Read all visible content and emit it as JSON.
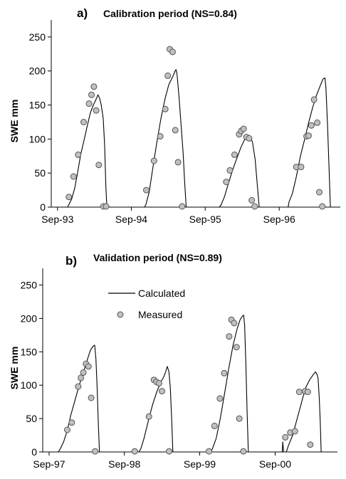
{
  "chart_data": [
    {
      "type": "line",
      "panel_label": "a)",
      "title": "Calibration period (NS=0.84)",
      "ylabel": "SWE mm",
      "xlabel": "",
      "ylim": [
        0,
        275
      ],
      "yticks": [
        0,
        50,
        100,
        150,
        200,
        250
      ],
      "xlim": [
        "1993-08-01",
        "1997-06-30"
      ],
      "xticks": [
        {
          "date": "1993-09-01",
          "label": "Sep-93"
        },
        {
          "date": "1994-09-01",
          "label": "Sep-94"
        },
        {
          "date": "1995-09-01",
          "label": "Sep-95"
        },
        {
          "date": "1996-09-01",
          "label": "Sep-96"
        }
      ],
      "grid": false,
      "series": [
        {
          "kind": "line",
          "color": "#000000",
          "points": [
            [
              "1993-08-01",
              0
            ],
            [
              "1993-10-20",
              0
            ],
            [
              "1993-10-26",
              3
            ],
            [
              "1993-11-10",
              12
            ],
            [
              "1993-11-25",
              28
            ],
            [
              "1993-12-10",
              52
            ],
            [
              "1993-12-25",
              78
            ],
            [
              "1994-01-10",
              98
            ],
            [
              "1994-01-25",
              118
            ],
            [
              "1994-02-10",
              138
            ],
            [
              "1994-02-25",
              150
            ],
            [
              "1994-03-10",
              158
            ],
            [
              "1994-03-20",
              165
            ],
            [
              "1994-03-28",
              160
            ],
            [
              "1994-04-05",
              150
            ],
            [
              "1994-04-15",
              130
            ],
            [
              "1994-04-22",
              90
            ],
            [
              "1994-04-28",
              30
            ],
            [
              "1994-05-03",
              0
            ],
            [
              "1994-11-05",
              0
            ],
            [
              "1994-11-12",
              4
            ],
            [
              "1994-11-28",
              22
            ],
            [
              "1994-12-15",
              55
            ],
            [
              "1995-01-05",
              95
            ],
            [
              "1995-01-25",
              130
            ],
            [
              "1995-02-15",
              160
            ],
            [
              "1995-03-05",
              180
            ],
            [
              "1995-03-25",
              192
            ],
            [
              "1995-04-05",
              200
            ],
            [
              "1995-04-10",
              202
            ],
            [
              "1995-04-15",
              195
            ],
            [
              "1995-04-25",
              160
            ],
            [
              "1995-05-05",
              120
            ],
            [
              "1995-05-15",
              80
            ],
            [
              "1995-05-22",
              40
            ],
            [
              "1995-05-30",
              0
            ],
            [
              "1995-11-10",
              0
            ],
            [
              "1995-11-18",
              3
            ],
            [
              "1995-12-05",
              15
            ],
            [
              "1995-12-25",
              35
            ],
            [
              "1996-01-15",
              55
            ],
            [
              "1996-02-05",
              72
            ],
            [
              "1996-02-25",
              88
            ],
            [
              "1996-03-15",
              100
            ],
            [
              "1996-04-01",
              105
            ],
            [
              "1996-04-12",
              103
            ],
            [
              "1996-04-22",
              95
            ],
            [
              "1996-05-05",
              70
            ],
            [
              "1996-05-15",
              35
            ],
            [
              "1996-05-25",
              0
            ],
            [
              "1996-10-15",
              0
            ],
            [
              "1996-10-20",
              8
            ],
            [
              "1996-11-05",
              20
            ],
            [
              "1996-11-25",
              45
            ],
            [
              "1996-12-15",
              75
            ],
            [
              "1997-01-05",
              100
            ],
            [
              "1997-01-25",
              125
            ],
            [
              "1997-02-15",
              148
            ],
            [
              "1997-03-05",
              165
            ],
            [
              "1997-03-25",
              180
            ],
            [
              "1997-04-05",
              188
            ],
            [
              "1997-04-15",
              190
            ],
            [
              "1997-04-20",
              175
            ],
            [
              "1997-04-28",
              120
            ],
            [
              "1997-05-05",
              60
            ],
            [
              "1997-05-12",
              0
            ],
            [
              "1997-06-30",
              0
            ]
          ]
        },
        {
          "kind": "scatter",
          "color": "#c0c0c0",
          "points": [
            [
              "1993-10-27",
              15
            ],
            [
              "1993-11-19",
              45
            ],
            [
              "1993-12-12",
              77
            ],
            [
              "1994-01-08",
              125
            ],
            [
              "1994-02-04",
              152
            ],
            [
              "1994-02-16",
              165
            ],
            [
              "1994-02-28",
              177
            ],
            [
              "1994-03-11",
              142
            ],
            [
              "1994-03-24",
              62
            ],
            [
              "1994-04-16",
              1
            ],
            [
              "1994-04-29",
              1
            ],
            [
              "1994-11-14",
              25
            ],
            [
              "1994-12-22",
              68
            ],
            [
              "1995-01-22",
              104
            ],
            [
              "1995-02-16",
              144
            ],
            [
              "1995-02-28",
              193
            ],
            [
              "1995-03-10",
              232
            ],
            [
              "1995-03-24",
              228
            ],
            [
              "1995-04-06",
              113
            ],
            [
              "1995-04-20",
              66
            ],
            [
              "1995-05-10",
              1
            ],
            [
              "1995-12-14",
              37
            ],
            [
              "1996-01-01",
              54
            ],
            [
              "1996-01-24",
              77
            ],
            [
              "1996-02-16",
              107
            ],
            [
              "1996-02-26",
              112
            ],
            [
              "1996-03-09",
              115
            ],
            [
              "1996-03-23",
              103
            ],
            [
              "1996-04-05",
              101
            ],
            [
              "1996-04-18",
              10
            ],
            [
              "1996-05-03",
              1
            ],
            [
              "1996-11-25",
              59
            ],
            [
              "1996-12-18",
              59
            ],
            [
              "1997-01-14",
              104
            ],
            [
              "1997-01-24",
              105
            ],
            [
              "1997-02-07",
              120
            ],
            [
              "1997-02-20",
              158
            ],
            [
              "1997-03-08",
              124
            ],
            [
              "1997-03-18",
              22
            ],
            [
              "1997-04-02",
              1
            ]
          ]
        }
      ]
    },
    {
      "type": "line",
      "panel_label": "b)",
      "title": "Validation period (NS=0.89)",
      "ylabel": "SWE mm",
      "xlabel": "",
      "ylim": [
        0,
        275
      ],
      "yticks": [
        0,
        50,
        100,
        150,
        200,
        250
      ],
      "xlim": [
        "1997-08-01",
        "2001-06-30"
      ],
      "xticks": [
        {
          "date": "1997-09-01",
          "label": "Sep-97"
        },
        {
          "date": "1998-09-01",
          "label": "Sep-98"
        },
        {
          "date": "1999-09-01",
          "label": "Sep-99"
        },
        {
          "date": "2000-09-01",
          "label": "Sep-00"
        }
      ],
      "grid": false,
      "legend": {
        "placement": "upper-left",
        "entries": [
          {
            "label": "Calculated",
            "kind": "line"
          },
          {
            "label": "Measured",
            "kind": "scatter"
          }
        ]
      },
      "series": [
        {
          "kind": "line",
          "name": "Calculated",
          "color": "#000000",
          "points": [
            [
              "1997-08-01",
              0
            ],
            [
              "1997-10-15",
              0
            ],
            [
              "1997-10-22",
              3
            ],
            [
              "1997-11-10",
              15
            ],
            [
              "1997-11-28",
              32
            ],
            [
              "1997-12-15",
              55
            ],
            [
              "1998-01-05",
              78
            ],
            [
              "1998-01-25",
              100
            ],
            [
              "1998-02-15",
              120
            ],
            [
              "1998-03-05",
              138
            ],
            [
              "1998-03-20",
              152
            ],
            [
              "1998-04-01",
              158
            ],
            [
              "1998-04-10",
              160
            ],
            [
              "1998-04-16",
              140
            ],
            [
              "1998-04-22",
              95
            ],
            [
              "1998-04-28",
              40
            ],
            [
              "1998-05-03",
              0
            ],
            [
              "1998-11-10",
              0
            ],
            [
              "1998-11-20",
              5
            ],
            [
              "1998-12-05",
              20
            ],
            [
              "1998-12-25",
              45
            ],
            [
              "1999-01-15",
              70
            ],
            [
              "1999-02-05",
              90
            ],
            [
              "1999-02-25",
              105
            ],
            [
              "1999-03-10",
              112
            ],
            [
              "1999-03-20",
              120
            ],
            [
              "1999-03-28",
              128
            ],
            [
              "1999-04-05",
              120
            ],
            [
              "1999-04-12",
              95
            ],
            [
              "1999-04-18",
              50
            ],
            [
              "1999-04-24",
              0
            ],
            [
              "1999-10-25",
              0
            ],
            [
              "1999-11-01",
              4
            ],
            [
              "1999-11-20",
              20
            ],
            [
              "1999-12-10",
              50
            ],
            [
              "2000-01-01",
              90
            ],
            [
              "2000-01-20",
              125
            ],
            [
              "2000-02-10",
              160
            ],
            [
              "2000-03-01",
              185
            ],
            [
              "2000-03-15",
              198
            ],
            [
              "2000-03-25",
              203
            ],
            [
              "2000-04-01",
              205
            ],
            [
              "2000-04-06",
              190
            ],
            [
              "2000-04-12",
              130
            ],
            [
              "2000-04-18",
              60
            ],
            [
              "2000-04-24",
              0
            ],
            [
              "2000-10-05",
              0
            ],
            [
              "2000-10-08",
              15
            ],
            [
              "2000-10-12",
              0
            ],
            [
              "2000-10-25",
              0
            ],
            [
              "2000-11-05",
              10
            ],
            [
              "2000-11-25",
              25
            ],
            [
              "2000-12-15",
              48
            ],
            [
              "2001-01-05",
              72
            ],
            [
              "2001-01-25",
              95
            ],
            [
              "2001-02-15",
              108
            ],
            [
              "2001-03-05",
              116
            ],
            [
              "2001-03-15",
              120
            ],
            [
              "2001-03-22",
              117
            ],
            [
              "2001-03-28",
              110
            ],
            [
              "2001-04-03",
              80
            ],
            [
              "2001-04-08",
              40
            ],
            [
              "2001-04-12",
              0
            ],
            [
              "2001-06-30",
              0
            ]
          ]
        },
        {
          "kind": "scatter",
          "name": "Measured",
          "color": "#c0c0c0",
          "points": [
            [
              "1997-11-28",
              33
            ],
            [
              "1997-12-20",
              44
            ],
            [
              "1998-01-20",
              98
            ],
            [
              "1998-02-02",
              111
            ],
            [
              "1998-02-14",
              119
            ],
            [
              "1998-02-27",
              132
            ],
            [
              "1998-03-11",
              128
            ],
            [
              "1998-03-24",
              81
            ],
            [
              "1998-04-12",
              1
            ],
            [
              "1998-10-21",
              1
            ],
            [
              "1998-12-29",
              53
            ],
            [
              "1999-01-22",
              108
            ],
            [
              "1999-02-03",
              105
            ],
            [
              "1999-02-16",
              103
            ],
            [
              "1999-03-02",
              91
            ],
            [
              "1999-04-06",
              1
            ],
            [
              "1999-10-16",
              1
            ],
            [
              "1999-11-12",
              39
            ],
            [
              "1999-12-08",
              80
            ],
            [
              "1999-12-29",
              118
            ],
            [
              "2000-01-22",
              173
            ],
            [
              "2000-02-02",
              198
            ],
            [
              "2000-02-15",
              193
            ],
            [
              "2000-02-27",
              157
            ],
            [
              "2000-03-11",
              50
            ],
            [
              "2000-03-31",
              1
            ],
            [
              "2000-10-20",
              22
            ],
            [
              "2000-11-13",
              29
            ],
            [
              "2000-12-06",
              31
            ],
            [
              "2000-12-27",
              90
            ],
            [
              "2001-01-24",
              91
            ],
            [
              "2001-02-06",
              90
            ],
            [
              "2001-02-18",
              11
            ]
          ]
        }
      ]
    }
  ]
}
